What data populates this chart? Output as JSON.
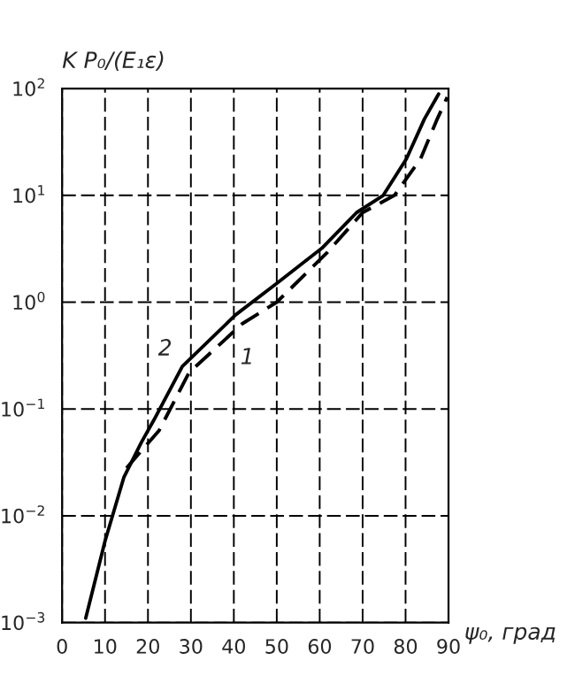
{
  "chart_data": {
    "type": "line",
    "xlabel": "ψ₀, град",
    "ylabel": "K P₀/(E₁ε)",
    "log": "y",
    "xlim": [
      0,
      90
    ],
    "xticks": [
      0,
      10,
      20,
      30,
      40,
      50,
      60,
      70,
      80,
      90
    ],
    "ylim": [
      0.001,
      100
    ],
    "yticks": [
      {
        "value": 0.001,
        "label": "10$^{−3}$"
      },
      {
        "value": 0.01,
        "label": "10$^{−2}$"
      },
      {
        "value": 0.1,
        "label": "10$^{−1}$"
      },
      {
        "value": 1,
        "label": "10$^{0}$"
      },
      {
        "value": 10,
        "label": "10$^{1}$"
      },
      {
        "value": 100,
        "label": "10$^{2}$"
      }
    ],
    "grid": true,
    "legend": false,
    "series": [
      {
        "color": "#000000",
        "line_style": "solid",
        "x": [
          5.5,
          10,
          14.4,
          18.5,
          21.4,
          28,
          40.4,
          50,
          60.5,
          68.6,
          74.8,
          80.2,
          84.4,
          87.7
        ],
        "values": [
          0.0011,
          0.0058,
          0.023,
          0.049,
          0.079,
          0.25,
          0.76,
          1.5,
          3.2,
          6.9,
          10,
          22,
          52,
          89
        ]
      },
      {
        "color": "#000000",
        "line_style": "dashed",
        "x": [
          15,
          22.6,
          29.6,
          42,
          50,
          61.7,
          70,
          77.4,
          83.5,
          87.2,
          89.7
        ],
        "values": [
          0.028,
          0.063,
          0.22,
          0.63,
          1.0,
          2.9,
          6.9,
          10,
          22,
          50,
          83
        ]
      }
    ],
    "annotations": [
      {
        "text": "2",
        "x": 28,
        "y": 0.25
      },
      {
        "text": "1",
        "x": 42,
        "y": 0.63
      }
    ]
  }
}
